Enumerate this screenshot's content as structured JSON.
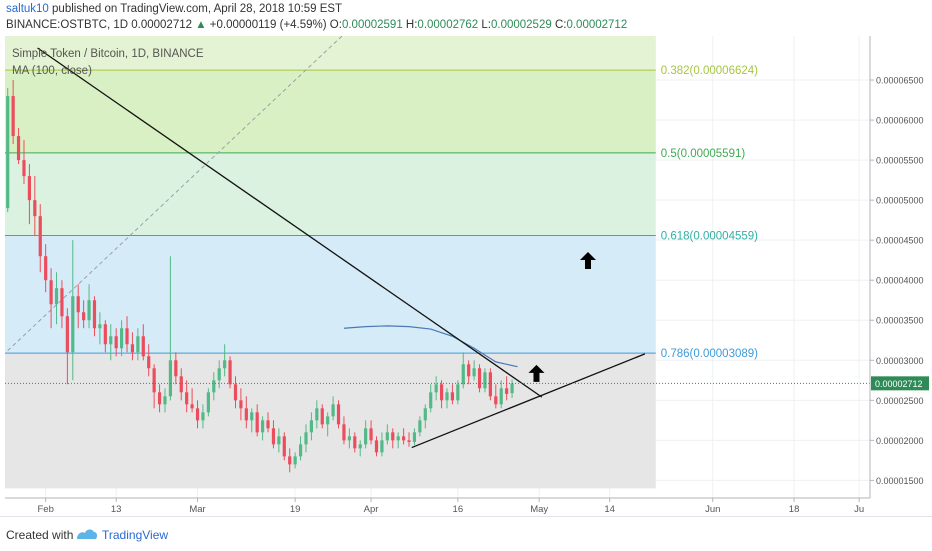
{
  "header": {
    "user": "saltuk10",
    "published": " published on TradingView.com, April 28, 2018 10:59 EST",
    "symbol": "BINANCE:OSTBTC, 1D",
    "last": " 0.00002712",
    "arrow": "▲",
    "change": " +0.00000119 (+4.59%)",
    "o_label": " O:",
    "o_val": "0.00002591",
    "h_label": " H:",
    "h_val": "0.00002762",
    "l_label": " L:",
    "l_val": "0.00002529",
    "c_label": " C:",
    "c_val": "0.00002712"
  },
  "footer": {
    "created": "Created with",
    "brand": "TradingView"
  },
  "chart_data": {
    "type": "candlestick",
    "title": "Simple Token / Bitcoin, 1D, BINANCE",
    "indicator": "MA (100, close)",
    "colors": {
      "up": "#53b987",
      "down": "#eb4d5c",
      "ma": "#4a78b5",
      "trend": "#111111",
      "price_line": "#2e8b57"
    },
    "y_ticks": [
      "0.00006500",
      "0.00006000",
      "0.00005500",
      "0.00005000",
      "0.00004500",
      "0.00004000",
      "0.00003500",
      "0.00003000",
      "0.00002500",
      "0.00002000",
      "0.00001500"
    ],
    "y_tick_values": [
      6.5e-05,
      6e-05,
      5.5e-05,
      5e-05,
      4.5e-05,
      4e-05,
      3.5e-05,
      3e-05,
      2.5e-05,
      2e-05,
      1.5e-05
    ],
    "x_ticks": [
      "Feb",
      "13",
      "Mar",
      "19",
      "Apr",
      "16",
      "May",
      "14",
      "Jun",
      "18",
      "Ju"
    ],
    "x_tick_days": [
      7,
      20,
      35,
      53,
      67,
      83,
      98,
      111,
      130,
      145,
      157
    ],
    "ylim": [
      1.28e-05,
      7.05e-05
    ],
    "xlim": [
      -0.5,
      159
    ],
    "last_price_label": "0.00002712",
    "last_price": 2.712e-05,
    "fib_levels": [
      {
        "label": "0.382(0.00006624)",
        "value": 6.624e-05,
        "color": "#a6c640",
        "fill": "#d9f0c5"
      },
      {
        "label": "0.5(0.00005591)",
        "value": 5.591e-05,
        "color": "#3faa52",
        "fill": "#dcf2e0"
      },
      {
        "label": "0.618(0.00004559)",
        "value": 4.559e-05,
        "color": "#2fb0a6",
        "fill": "#d5ebf8"
      },
      {
        "label": "0.786(0.00003089)",
        "value": 3.089e-05,
        "color": "#3e9bd8",
        "fill": "#e6e6e6"
      }
    ],
    "fib_x_end": 119.5,
    "fib_bottom": 1.4e-05,
    "trendlines": [
      {
        "x1": 5.5,
        "y1": 6.9e-05,
        "x2": 98.5,
        "y2": 2.54e-05
      },
      {
        "x1": 74.5,
        "y1": 1.91e-05,
        "x2": 117.5,
        "y2": 3.08e-05
      }
    ],
    "dashed_line": {
      "x1": 0,
      "y1": 3.12e-05,
      "x2": 64,
      "y2": 7.2e-05
    },
    "arrows": [
      {
        "x": 107,
        "y": 4.24e-05
      },
      {
        "x": 97.5,
        "y": 2.83e-05
      }
    ],
    "ma": [
      [
        62,
        3.4e-05
      ],
      [
        66,
        3.42e-05
      ],
      [
        70,
        3.43e-05
      ],
      [
        74,
        3.42e-05
      ],
      [
        78,
        3.39e-05
      ],
      [
        82,
        3.3e-05
      ],
      [
        86,
        3.15e-05
      ],
      [
        90,
        2.98e-05
      ],
      [
        94,
        2.92e-05
      ]
    ],
    "candles": [
      [
        4.9e-05,
        6.4e-05,
        4.85e-05,
        6.3e-05
      ],
      [
        6.3e-05,
        6.5e-05,
        5.7e-05,
        5.8e-05
      ],
      [
        5.8e-05,
        5.9e-05,
        5.45e-05,
        5.5e-05
      ],
      [
        5.5e-05,
        5.75e-05,
        5.2e-05,
        5.3e-05
      ],
      [
        5.3e-05,
        5.45e-05,
        4.7e-05,
        5e-05
      ],
      [
        5e-05,
        5.3e-05,
        4.55e-05,
        4.8e-05
      ],
      [
        4.8e-05,
        4.95e-05,
        4.1e-05,
        4.3e-05
      ],
      [
        4.3e-05,
        4.45e-05,
        3.85e-05,
        4e-05
      ],
      [
        4e-05,
        4.15e-05,
        3.4e-05,
        3.7e-05
      ],
      [
        3.7e-05,
        4.1e-05,
        3.45e-05,
        3.9e-05
      ],
      [
        3.9e-05,
        4e-05,
        3.4e-05,
        3.55e-05
      ],
      [
        3.55e-05,
        3.65e-05,
        2.7e-05,
        3.1e-05
      ],
      [
        3.1e-05,
        4.5e-05,
        2.75e-05,
        3.8e-05
      ],
      [
        3.8e-05,
        3.95e-05,
        3.4e-05,
        3.6e-05
      ],
      [
        3.6e-05,
        3.75e-05,
        3.4e-05,
        3.5e-05
      ],
      [
        3.5e-05,
        3.95e-05,
        3.4e-05,
        3.75e-05
      ],
      [
        3.75e-05,
        3.8e-05,
        3.3e-05,
        3.4e-05
      ],
      [
        3.4e-05,
        3.6e-05,
        3.2e-05,
        3.45e-05
      ],
      [
        3.45e-05,
        3.5e-05,
        3.1e-05,
        3.2e-05
      ],
      [
        3.2e-05,
        3.45e-05,
        3e-05,
        3.3e-05
      ],
      [
        3.3e-05,
        3.4e-05,
        3.05e-05,
        3.15e-05
      ],
      [
        3.15e-05,
        3.5e-05,
        3.05e-05,
        3.4e-05
      ],
      [
        3.4e-05,
        3.55e-05,
        3.1e-05,
        3.2e-05
      ],
      [
        3.2e-05,
        3.35e-05,
        3e-05,
        3.1e-05
      ],
      [
        3.1e-05,
        3.4e-05,
        3e-05,
        3.3e-05
      ],
      [
        3.3e-05,
        3.45e-05,
        3e-05,
        3.05e-05
      ],
      [
        3.05e-05,
        3.2e-05,
        2.8e-05,
        2.9e-05
      ],
      [
        2.9e-05,
        2.95e-05,
        2.4e-05,
        2.6e-05
      ],
      [
        2.6e-05,
        2.7e-05,
        2.35e-05,
        2.45e-05
      ],
      [
        2.45e-05,
        2.65e-05,
        2.35e-05,
        2.55e-05
      ],
      [
        2.55e-05,
        4.3e-05,
        2.5e-05,
        3e-05
      ],
      [
        3e-05,
        3.1e-05,
        2.7e-05,
        2.8e-05
      ],
      [
        2.8e-05,
        2.9e-05,
        2.5e-05,
        2.6e-05
      ],
      [
        2.6e-05,
        2.75e-05,
        2.35e-05,
        2.45e-05
      ],
      [
        2.45e-05,
        2.65e-05,
        2.35e-05,
        2.4e-05
      ],
      [
        2.4e-05,
        2.5e-05,
        2.15e-05,
        2.25e-05
      ],
      [
        2.25e-05,
        2.45e-05,
        2.15e-05,
        2.35e-05
      ],
      [
        2.35e-05,
        2.65e-05,
        2.3e-05,
        2.6e-05
      ],
      [
        2.6e-05,
        2.85e-05,
        2.5e-05,
        2.75e-05
      ],
      [
        2.75e-05,
        3e-05,
        2.65e-05,
        2.9e-05
      ],
      [
        2.9e-05,
        3.2e-05,
        2.8e-05,
        3e-05
      ],
      [
        3e-05,
        3.05e-05,
        2.65e-05,
        2.7e-05
      ],
      [
        2.7e-05,
        2.8e-05,
        2.4e-05,
        2.5e-05
      ],
      [
        2.5e-05,
        2.65e-05,
        2.25e-05,
        2.4e-05
      ],
      [
        2.4e-05,
        2.55e-05,
        2.15e-05,
        2.25e-05
      ],
      [
        2.25e-05,
        2.4e-05,
        2.1e-05,
        2.35e-05
      ],
      [
        2.35e-05,
        2.45e-05,
        2.05e-05,
        2.1e-05
      ],
      [
        2.1e-05,
        2.3e-05,
        2e-05,
        2.25e-05
      ],
      [
        2.25e-05,
        2.35e-05,
        2.1e-05,
        2.15e-05
      ],
      [
        2.15e-05,
        2.25e-05,
        1.9e-05,
        1.95e-05
      ],
      [
        1.95e-05,
        2.15e-05,
        1.85e-05,
        2.05e-05
      ],
      [
        2.05e-05,
        2.1e-05,
        1.75e-05,
        1.8e-05
      ],
      [
        1.8e-05,
        1.9e-05,
        1.6e-05,
        1.7e-05
      ],
      [
        1.7e-05,
        1.85e-05,
        1.65e-05,
        1.8e-05
      ],
      [
        1.8e-05,
        2.05e-05,
        1.75e-05,
        1.95e-05
      ],
      [
        1.95e-05,
        2.2e-05,
        1.85e-05,
        2.1e-05
      ],
      [
        2.1e-05,
        2.35e-05,
        2e-05,
        2.25e-05
      ],
      [
        2.25e-05,
        2.5e-05,
        2.15e-05,
        2.4e-05
      ],
      [
        2.4e-05,
        2.45e-05,
        2.15e-05,
        2.2e-05
      ],
      [
        2.2e-05,
        2.35e-05,
        2.05e-05,
        2.3e-05
      ],
      [
        2.3e-05,
        2.55e-05,
        2.25e-05,
        2.45e-05
      ],
      [
        2.45e-05,
        2.5e-05,
        2.15e-05,
        2.2e-05
      ],
      [
        2.2e-05,
        2.3e-05,
        1.95e-05,
        2e-05
      ],
      [
        2e-05,
        2.15e-05,
        1.9e-05,
        2.05e-05
      ],
      [
        2.05e-05,
        2.1e-05,
        1.85e-05,
        1.9e-05
      ],
      [
        1.9e-05,
        2e-05,
        1.8e-05,
        1.95e-05
      ],
      [
        1.95e-05,
        2.25e-05,
        1.9e-05,
        2.15e-05
      ],
      [
        2.15e-05,
        2.25e-05,
        1.95e-05,
        2e-05
      ],
      [
        2e-05,
        2.05e-05,
        1.8e-05,
        1.85e-05
      ],
      [
        1.85e-05,
        2.1e-05,
        1.8e-05,
        2e-05
      ],
      [
        2e-05,
        2.2e-05,
        1.95e-05,
        2.1e-05
      ],
      [
        2.1e-05,
        2.15e-05,
        1.9e-05,
        2e-05
      ],
      [
        2e-05,
        2.1e-05,
        1.9e-05,
        2.05e-05
      ],
      [
        2.05e-05,
        2.15e-05,
        1.95e-05,
        2e-05
      ],
      [
        2e-05,
        2.1e-05,
        1.92e-05,
        1.98e-05
      ],
      [
        1.98e-05,
        2.15e-05,
        1.94e-05,
        2.1e-05
      ],
      [
        2.1e-05,
        2.3e-05,
        2.05e-05,
        2.25e-05
      ],
      [
        2.25e-05,
        2.45e-05,
        2.15e-05,
        2.4e-05
      ],
      [
        2.4e-05,
        2.7e-05,
        2.35e-05,
        2.6e-05
      ],
      [
        2.6e-05,
        2.8e-05,
        2.5e-05,
        2.7e-05
      ],
      [
        2.7e-05,
        2.75e-05,
        2.4e-05,
        2.5e-05
      ],
      [
        2.5e-05,
        2.65e-05,
        2.4e-05,
        2.6e-05
      ],
      [
        2.6e-05,
        2.7e-05,
        2.45e-05,
        2.5e-05
      ],
      [
        2.5e-05,
        2.75e-05,
        2.45e-05,
        2.7e-05
      ],
      [
        2.7e-05,
        3.1e-05,
        2.65e-05,
        2.95e-05
      ],
      [
        2.95e-05,
        3e-05,
        2.7e-05,
        2.8e-05
      ],
      [
        2.8e-05,
        3e-05,
        2.75e-05,
        2.9e-05
      ],
      [
        2.9e-05,
        2.95e-05,
        2.6e-05,
        2.65e-05
      ],
      [
        2.65e-05,
        2.9e-05,
        2.6e-05,
        2.85e-05
      ],
      [
        2.85e-05,
        2.9e-05,
        2.5e-05,
        2.55e-05
      ],
      [
        2.55e-05,
        2.7e-05,
        2.4e-05,
        2.45e-05
      ],
      [
        2.45e-05,
        2.75e-05,
        2.4e-05,
        2.65e-05
      ],
      [
        2.65e-05,
        2.8e-05,
        2.5e-05,
        2.58e-05
      ],
      [
        2.59e-05,
        2.76e-05,
        2.53e-05,
        2.71e-05
      ]
    ]
  }
}
